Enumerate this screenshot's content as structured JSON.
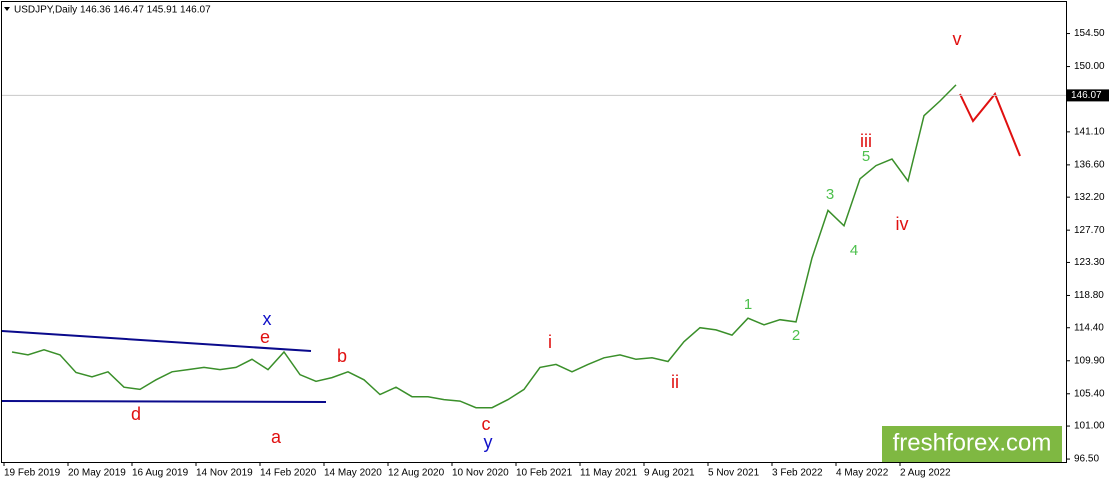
{
  "chart_data": {
    "type": "line",
    "title": "USDJPY,Daily  146.36 146.47 145.91 146.07",
    "watermark": "freshforex.com",
    "categories": [
      null,
      "19 Feb 2019",
      null,
      null,
      null,
      "20 May 2019",
      null,
      null,
      null,
      "16 Aug 2019",
      null,
      null,
      null,
      "14 Nov 2019",
      null,
      null,
      null,
      "14 Feb 2020",
      null,
      null,
      null,
      "14 May 2020",
      null,
      null,
      null,
      "12 Aug 2020",
      null,
      null,
      null,
      "10 Nov 2020",
      null,
      null,
      null,
      "10 Feb 2021",
      null,
      null,
      null,
      "11 May 2021",
      null,
      null,
      null,
      "9 Aug 2021",
      null,
      null,
      null,
      "5 Nov 2021",
      null,
      null,
      null,
      "3 Feb 2022",
      null,
      null,
      null,
      "4 May 2022",
      null,
      null,
      null,
      "2 Aug 2022",
      null,
      null
    ],
    "series": [
      {
        "name": "USDJPY",
        "color": "#3a8f2a",
        "values": [
          111.1,
          110.7,
          111.4,
          110.7,
          108.3,
          107.7,
          108.4,
          106.3,
          106.0,
          107.3,
          108.4,
          108.7,
          109.0,
          108.7,
          109.0,
          110.1,
          108.7,
          111.1,
          108.0,
          107.1,
          107.6,
          108.4,
          107.3,
          105.3,
          106.3,
          105.0,
          105.0,
          104.6,
          104.4,
          103.5,
          103.5,
          104.6,
          106.0,
          109.0,
          109.4,
          108.4,
          109.4,
          110.3,
          110.7,
          110.1,
          110.3,
          109.8,
          112.5,
          114.4,
          114.1,
          113.4,
          115.7,
          114.8,
          115.5,
          115.2,
          123.9,
          130.4,
          128.3,
          134.7,
          136.5,
          137.4,
          134.4,
          143.3,
          145.3,
          147.5
        ]
      }
    ],
    "last_price": {
      "value": 146.07,
      "label": "146.07"
    },
    "ylim": [
      96.1,
      158.8
    ],
    "yticks": [
      {
        "value": 96.5,
        "label": "96.50"
      },
      {
        "value": 101,
        "label": "101.00"
      },
      {
        "value": 105.4,
        "label": "105.40"
      },
      {
        "value": 109.9,
        "label": "109.90"
      },
      {
        "value": 114.4,
        "label": "114.40"
      },
      {
        "value": 118.8,
        "label": "118.80"
      },
      {
        "value": 123.3,
        "label": "123.30"
      },
      {
        "value": 127.7,
        "label": "127.70"
      },
      {
        "value": 132.2,
        "label": "132.20"
      },
      {
        "value": 136.6,
        "label": "136.60"
      },
      {
        "value": 141.1,
        "label": "141.10"
      },
      {
        "value": 150,
        "label": "150.00"
      },
      {
        "value": 154.5,
        "label": "154.50"
      }
    ],
    "annotations": [
      {
        "text": "x",
        "color": "#1010c8"
      },
      {
        "text": "e",
        "color": "#e01010"
      },
      {
        "text": "b",
        "color": "#e01010"
      },
      {
        "text": "d",
        "color": "#e01010"
      },
      {
        "text": "a",
        "color": "#e01010"
      },
      {
        "text": "c",
        "color": "#e01010"
      },
      {
        "text": "y",
        "color": "#1010c8"
      },
      {
        "text": "i",
        "color": "#e01010"
      },
      {
        "text": "ii",
        "color": "#e01010"
      },
      {
        "text": "1",
        "color": "#4cc04c"
      },
      {
        "text": "2",
        "color": "#4cc04c"
      },
      {
        "text": "3",
        "color": "#4cc04c"
      },
      {
        "text": "4",
        "color": "#4cc04c"
      },
      {
        "text": "5",
        "color": "#4cc04c"
      },
      {
        "text": "iii",
        "color": "#e01010"
      },
      {
        "text": "iv",
        "color": "#e01010"
      },
      {
        "text": "v",
        "color": "#e01010"
      }
    ]
  }
}
